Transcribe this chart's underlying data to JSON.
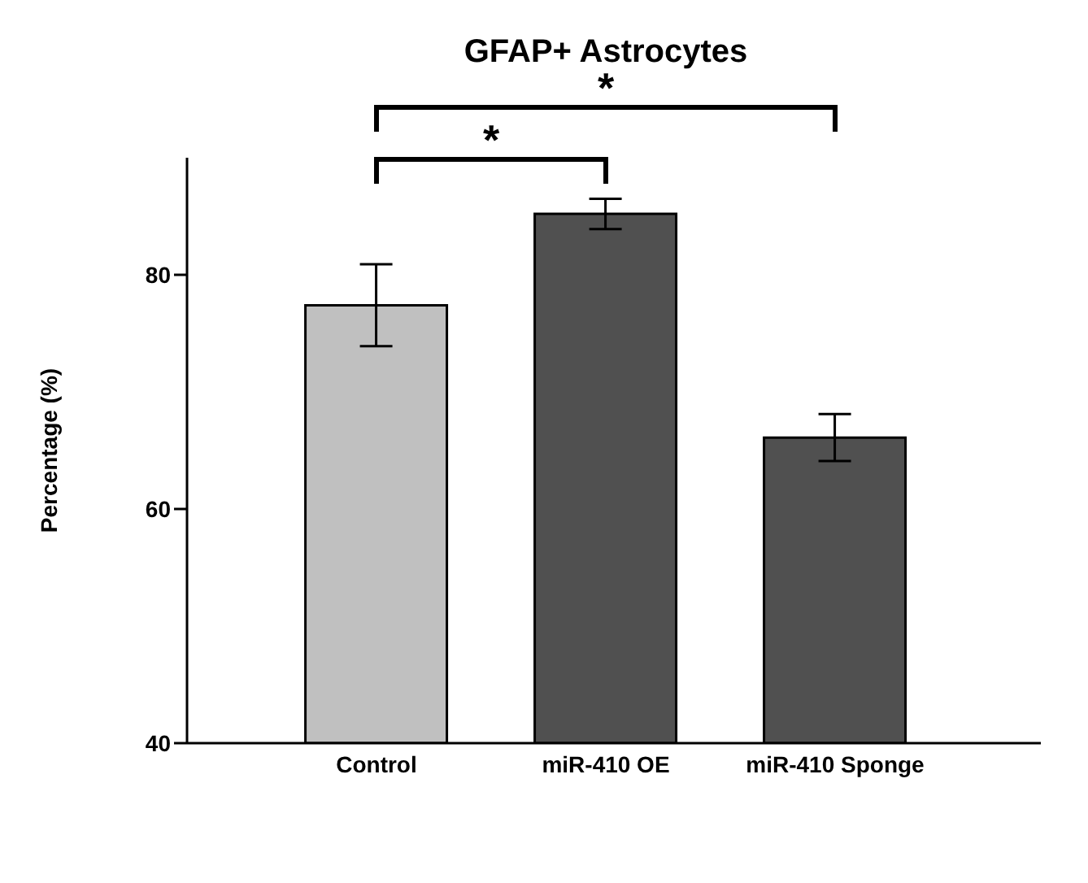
{
  "chart_data": {
    "type": "bar",
    "title": "GFAP+ Astrocytes",
    "ylabel": "Percentage (%)",
    "categories": [
      "Control",
      "miR-410 OE",
      "miR-410 Sponge"
    ],
    "values": [
      77.4,
      85.2,
      66.1
    ],
    "errors": [
      3.5,
      1.3,
      2.0
    ],
    "colors": [
      "#c0c0c0",
      "#505050",
      "#505050"
    ],
    "ylim": [
      40,
      90
    ],
    "yticks": [
      40,
      60,
      80
    ],
    "annotations": [
      "*",
      "*"
    ]
  }
}
